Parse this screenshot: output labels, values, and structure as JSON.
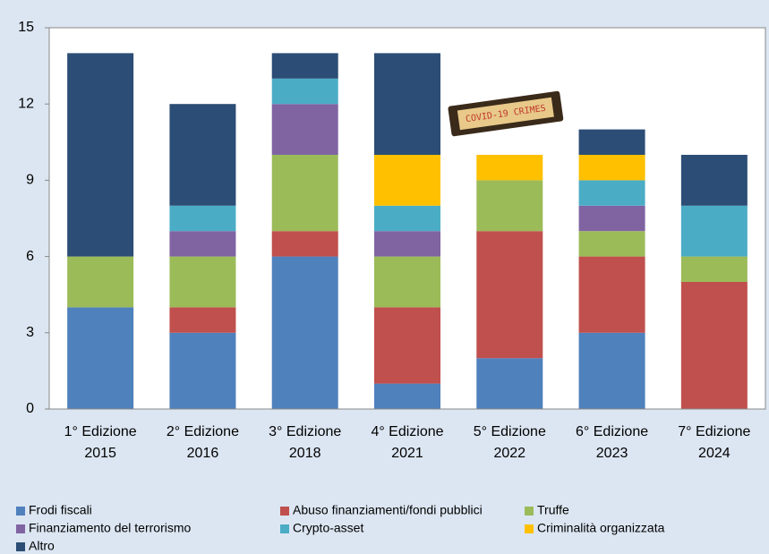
{
  "chart_data": {
    "type": "stacked_bar",
    "categories": [
      [
        "1° Edizione",
        "2015"
      ],
      [
        "2° Edizione",
        "2016"
      ],
      [
        "3° Edizione",
        "2018"
      ],
      [
        "4° Edizione",
        "2021"
      ],
      [
        "5° Edizione",
        "2022"
      ],
      [
        "6° Edizione",
        "2023"
      ],
      [
        "7° Edizione",
        "2024"
      ]
    ],
    "series": [
      {
        "name": "Frodi fiscali",
        "color": "#4f81bd",
        "values": [
          4,
          3,
          6,
          1,
          2,
          3,
          0
        ]
      },
      {
        "name": "Abuso finanziamenti/fondi pubblici",
        "color": "#c0504d",
        "values": [
          0,
          1,
          1,
          3,
          5,
          3,
          5
        ]
      },
      {
        "name": "Truffe",
        "color": "#9bbb59",
        "values": [
          2,
          2,
          3,
          2,
          2,
          1,
          1
        ]
      },
      {
        "name": "Finanziamento del terrorismo",
        "color": "#8064a2",
        "values": [
          0,
          1,
          2,
          1,
          0,
          1,
          0
        ]
      },
      {
        "name": "Crypto-asset",
        "color": "#4bacc6",
        "values": [
          0,
          1,
          1,
          1,
          0,
          1,
          2
        ]
      },
      {
        "name": "Criminalità organizzata",
        "color": "#ffc000",
        "values": [
          0,
          0,
          0,
          2,
          1,
          1,
          0
        ]
      },
      {
        "name": "Altro",
        "color": "#2c4d75",
        "values": [
          8,
          4,
          1,
          4,
          0,
          1,
          2
        ]
      }
    ],
    "annotation": "COVID-19 CRIMES",
    "ylim": [
      0,
      15
    ],
    "yticks": [
      0,
      3,
      6,
      9,
      12,
      15
    ],
    "grid": false
  }
}
